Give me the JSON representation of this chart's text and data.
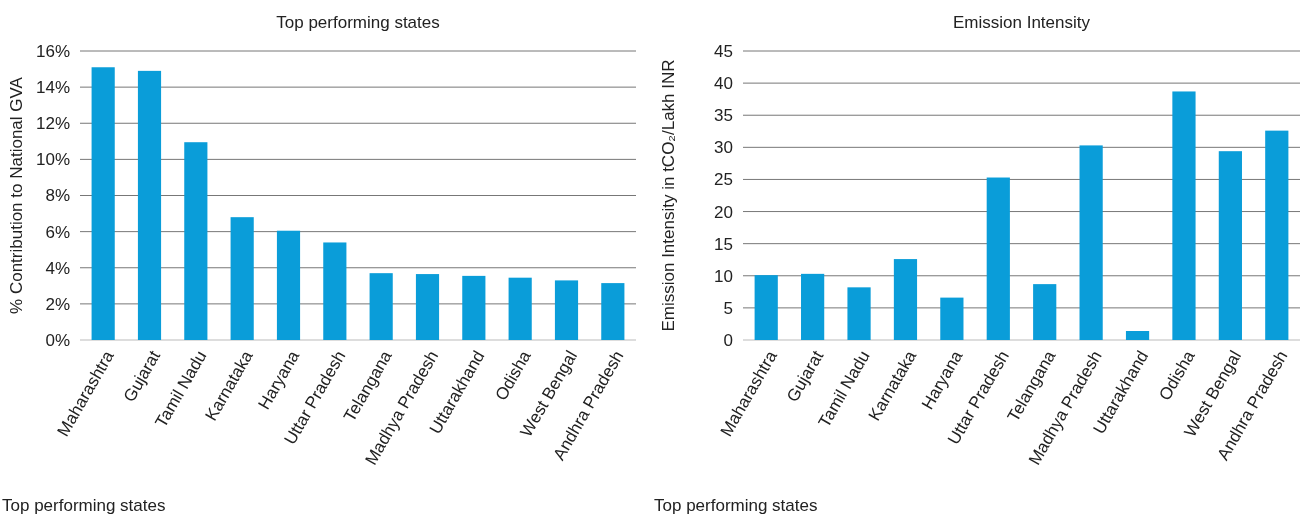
{
  "chart_data": [
    {
      "type": "bar",
      "title": "Top performing states",
      "ylabel": "% Contribution to National GVA",
      "categories": [
        "Maharashtra",
        "Gujarat",
        "Tamil Nadu",
        "Karnataka",
        "Haryana",
        "Uttar Pradesh",
        "Telangana",
        "Madhya Pradesh",
        "Uttarakhand",
        "Odisha",
        "West Bengal",
        "Andhra Pradesh"
      ],
      "values": [
        15.1,
        14.9,
        10.95,
        6.8,
        6.05,
        5.4,
        3.7,
        3.65,
        3.55,
        3.45,
        3.3,
        3.15
      ],
      "color": "#0a9dd9",
      "ylim": [
        0,
        16
      ],
      "yticks": [
        {
          "value": 0,
          "label": "0%"
        },
        {
          "value": 2,
          "label": "2%"
        },
        {
          "value": 4,
          "label": "4%"
        },
        {
          "value": 6,
          "label": "6%"
        },
        {
          "value": 8,
          "label": "8%"
        },
        {
          "value": 10,
          "label": "10%"
        },
        {
          "value": 12,
          "label": "12%"
        },
        {
          "value": 14,
          "label": "14%"
        },
        {
          "value": 16,
          "label": "16%"
        }
      ],
      "grid": "y",
      "annotations": [
        "Top performing states"
      ]
    },
    {
      "type": "bar",
      "title": "Emission Intensity",
      "ylabel": "Emission Intensity in tCO₂/Lakh INR",
      "categories": [
        "Maharashtra",
        "Gujarat",
        "Tamil Nadu",
        "Karnataka",
        "Haryana",
        "Uttar Pradesh",
        "Telangana",
        "Madhya Pradesh",
        "Uttarakhand",
        "Odisha",
        "West Bengal",
        "Andhra Pradesh"
      ],
      "values": [
        10.1,
        10.3,
        8.2,
        12.6,
        6.6,
        25.3,
        8.7,
        30.3,
        1.4,
        38.7,
        29.4,
        32.6
      ],
      "color": "#0a9dd9",
      "ylim": [
        0,
        45
      ],
      "yticks": [
        0,
        5,
        10,
        15,
        20,
        25,
        30,
        35,
        40,
        45
      ],
      "grid": "y",
      "annotations": [
        "Top performing states"
      ]
    }
  ]
}
